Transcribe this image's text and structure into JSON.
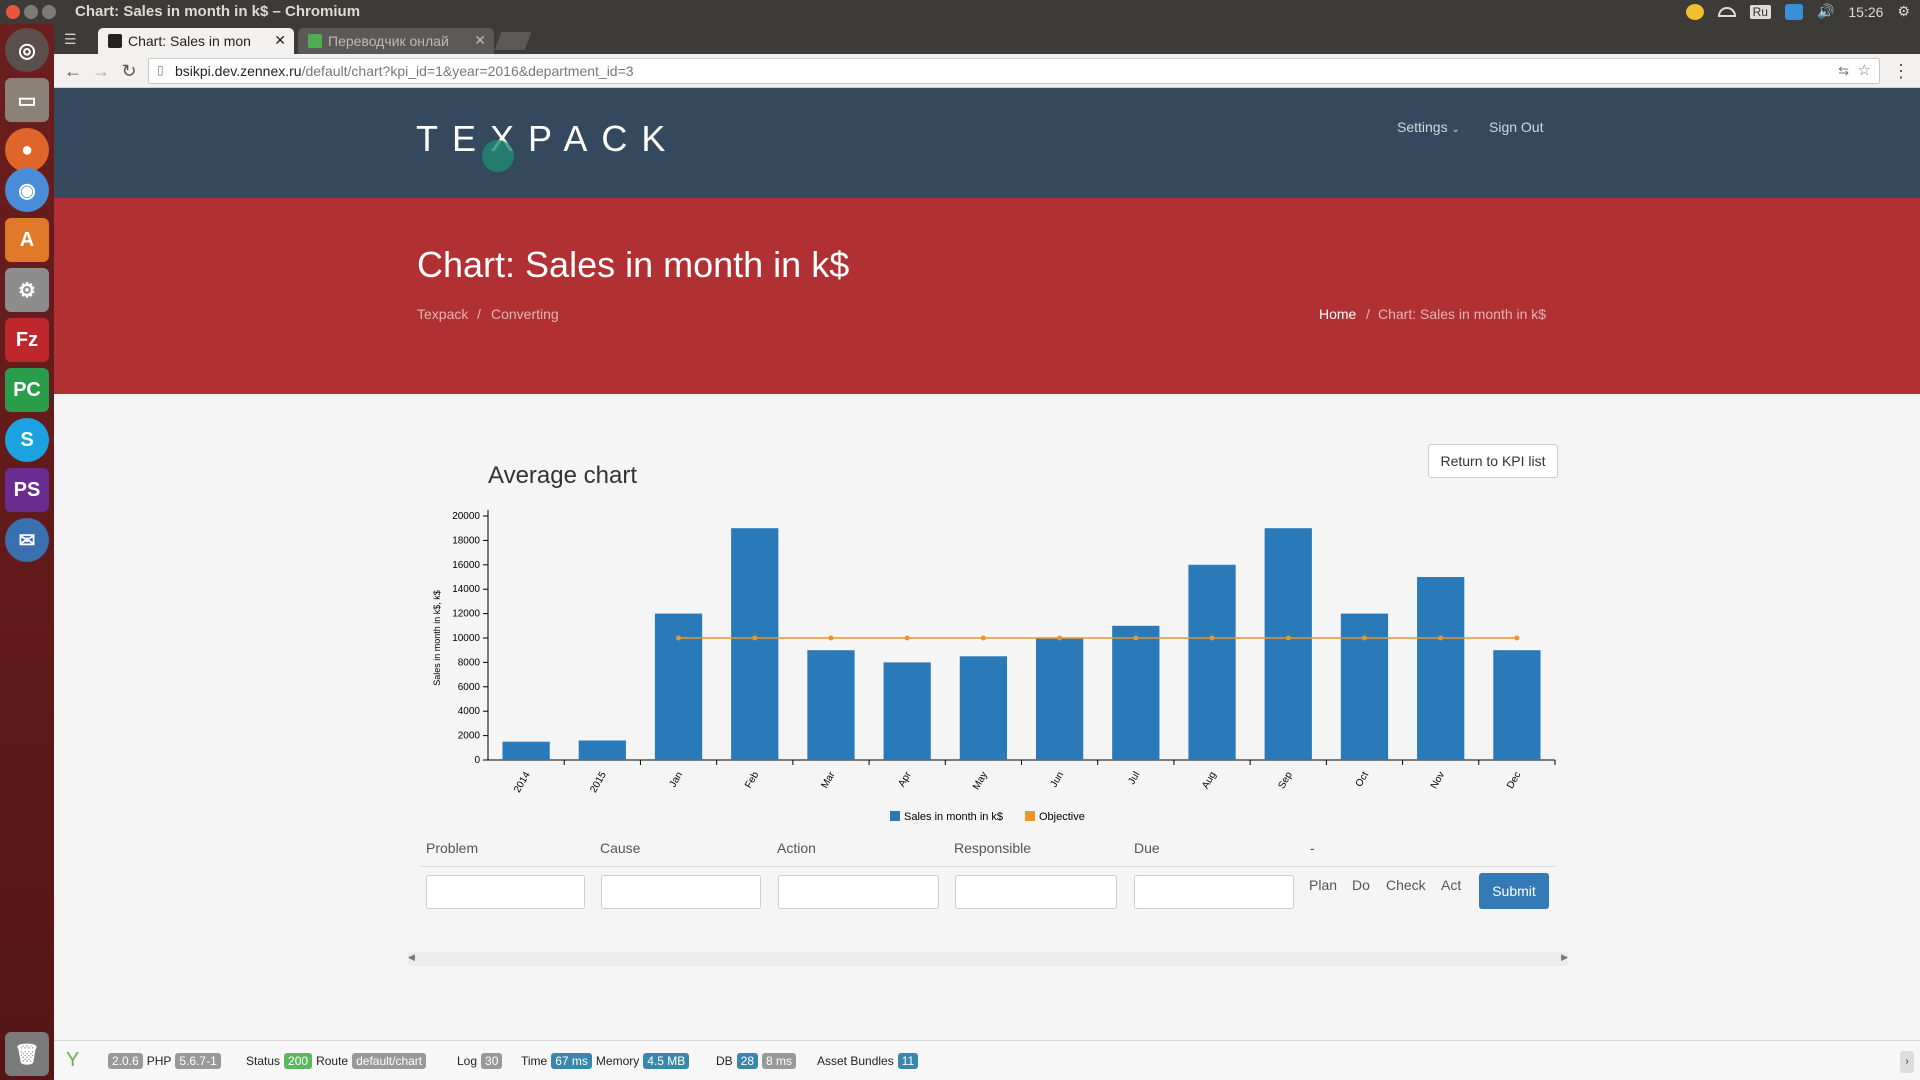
{
  "os": {
    "window_title": "Chart: Sales in month in k$ – Chromium",
    "clock": "15:26",
    "keyboard": "Ru"
  },
  "browser": {
    "tabs": [
      {
        "label": "Chart: Sales in mon",
        "active": true
      },
      {
        "label": "Переводчик онлай",
        "active": false
      }
    ],
    "url_host": "bsikpi.dev.zennex.ru",
    "url_path": "/default/chart?kpi_id=1&year=2016&department_id=3"
  },
  "header": {
    "logo": "TEXPACK",
    "nav": [
      {
        "label": "Settings"
      },
      {
        "label": "Sign Out"
      }
    ]
  },
  "hero": {
    "title": "Chart: Sales in month in k$",
    "left_crumbs": [
      "Texpack",
      "Converting"
    ],
    "right_crumbs": [
      "Home",
      "Chart: Sales in month in k$"
    ]
  },
  "chart_section": {
    "title": "Average chart",
    "return_label": "Return to KPI list"
  },
  "chart_data": {
    "type": "bar",
    "categories": [
      "2014",
      "2015",
      "Jan",
      "Feb",
      "Mar",
      "Apr",
      "May",
      "Jun",
      "Jul",
      "Aug",
      "Sep",
      "Oct",
      "Nov",
      "Dec"
    ],
    "series": [
      {
        "name": "Sales in month in k$",
        "type": "bar",
        "color": "#2a7ab9",
        "values": [
          1500,
          1600,
          12000,
          19000,
          9000,
          8000,
          8500,
          10000,
          11000,
          16000,
          19000,
          12000,
          15000,
          9000
        ]
      },
      {
        "name": "Objective",
        "type": "line",
        "color": "#e8962b",
        "values": [
          null,
          null,
          10000,
          10000,
          10000,
          10000,
          10000,
          10000,
          10000,
          10000,
          10000,
          10000,
          10000,
          10000
        ]
      }
    ],
    "ylabel": "Sales in month in k$, k$",
    "ylim": [
      0,
      20000
    ],
    "yticks": [
      0,
      2000,
      4000,
      6000,
      8000,
      10000,
      12000,
      14000,
      16000,
      18000,
      20000
    ],
    "legend_position": "bottom"
  },
  "form": {
    "headers": [
      "Problem",
      "Cause",
      "Action",
      "Responsible",
      "Due",
      "-"
    ],
    "pdca": [
      "Plan",
      "Do",
      "Check",
      "Act"
    ],
    "submit_label": "Submit"
  },
  "debug": {
    "version": "2.0.6",
    "php_label": "PHP",
    "php": "5.6.7-1",
    "status_label": "Status",
    "status": "200",
    "route_label": "Route",
    "route": "default/chart",
    "log_label": "Log",
    "log": "30",
    "time_label": "Time",
    "time": "67 ms",
    "memory_label": "Memory",
    "memory": "4.5 MB",
    "db_label": "DB",
    "db_count": "28",
    "db_time": "8 ms",
    "assets_label": "Asset Bundles",
    "assets": "11"
  }
}
